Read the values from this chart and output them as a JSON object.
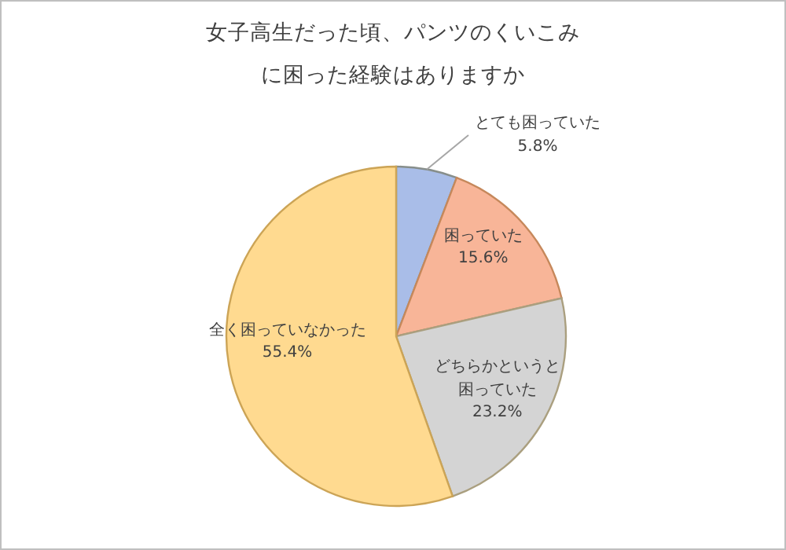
{
  "chart_data": {
    "type": "pie",
    "title": "女子高生だった頃、パンツのくいこみに困った経験はありますか",
    "categories": [
      "とても困っていた",
      "困っていた",
      "どちらかというと困っていた",
      "全く困っていなかった"
    ],
    "values": [
      5.8,
      15.6,
      23.2,
      55.4
    ],
    "value_labels": [
      "5.8%",
      "15.6%",
      "23.2%",
      "55.4%"
    ],
    "colors": [
      "#a9bde8",
      "#f8b598",
      "#d4d4d4",
      "#ffda90"
    ]
  }
}
